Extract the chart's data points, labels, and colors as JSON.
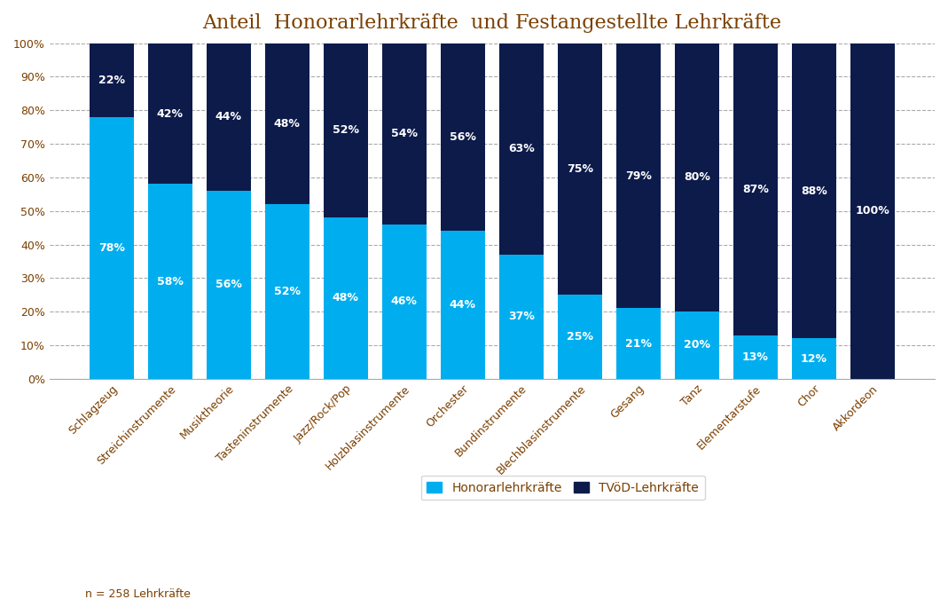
{
  "title": "Anteil  Honorarlehrkräfte  und Festangestellte Lehrkräfte",
  "categories": [
    "Schlagzeug",
    "Streichinstrumente",
    "Musiktheorie",
    "Tasteninstrumente",
    "Jazz/Rock/Pop",
    "Holzblasinstrumente",
    "Orchester",
    "Bundinstrumente",
    "Blechblasinstrumente",
    "Gesang",
    "Tanz",
    "Elementarstufe",
    "Chor",
    "Akkordeon"
  ],
  "honorar_pct": [
    78,
    58,
    56,
    52,
    48,
    46,
    44,
    37,
    25,
    21,
    20,
    13,
    12,
    0
  ],
  "tvod_pct": [
    22,
    42,
    44,
    48,
    52,
    54,
    56,
    63,
    75,
    79,
    80,
    87,
    88,
    100
  ],
  "honorar_color": "#00AEEF",
  "tvod_color": "#0D1B4B",
  "title_color": "#7B3F00",
  "label_fontsize": 9,
  "axis_label_fontsize": 9,
  "title_fontsize": 16,
  "background_color": "#FFFFFF",
  "note_text": "n = 258 Lehrkräfte",
  "legend_honorar": "Honorarlehrkräfte",
  "legend_tvod": "TVöD-Lehrkräfte",
  "bar_width": 0.75
}
